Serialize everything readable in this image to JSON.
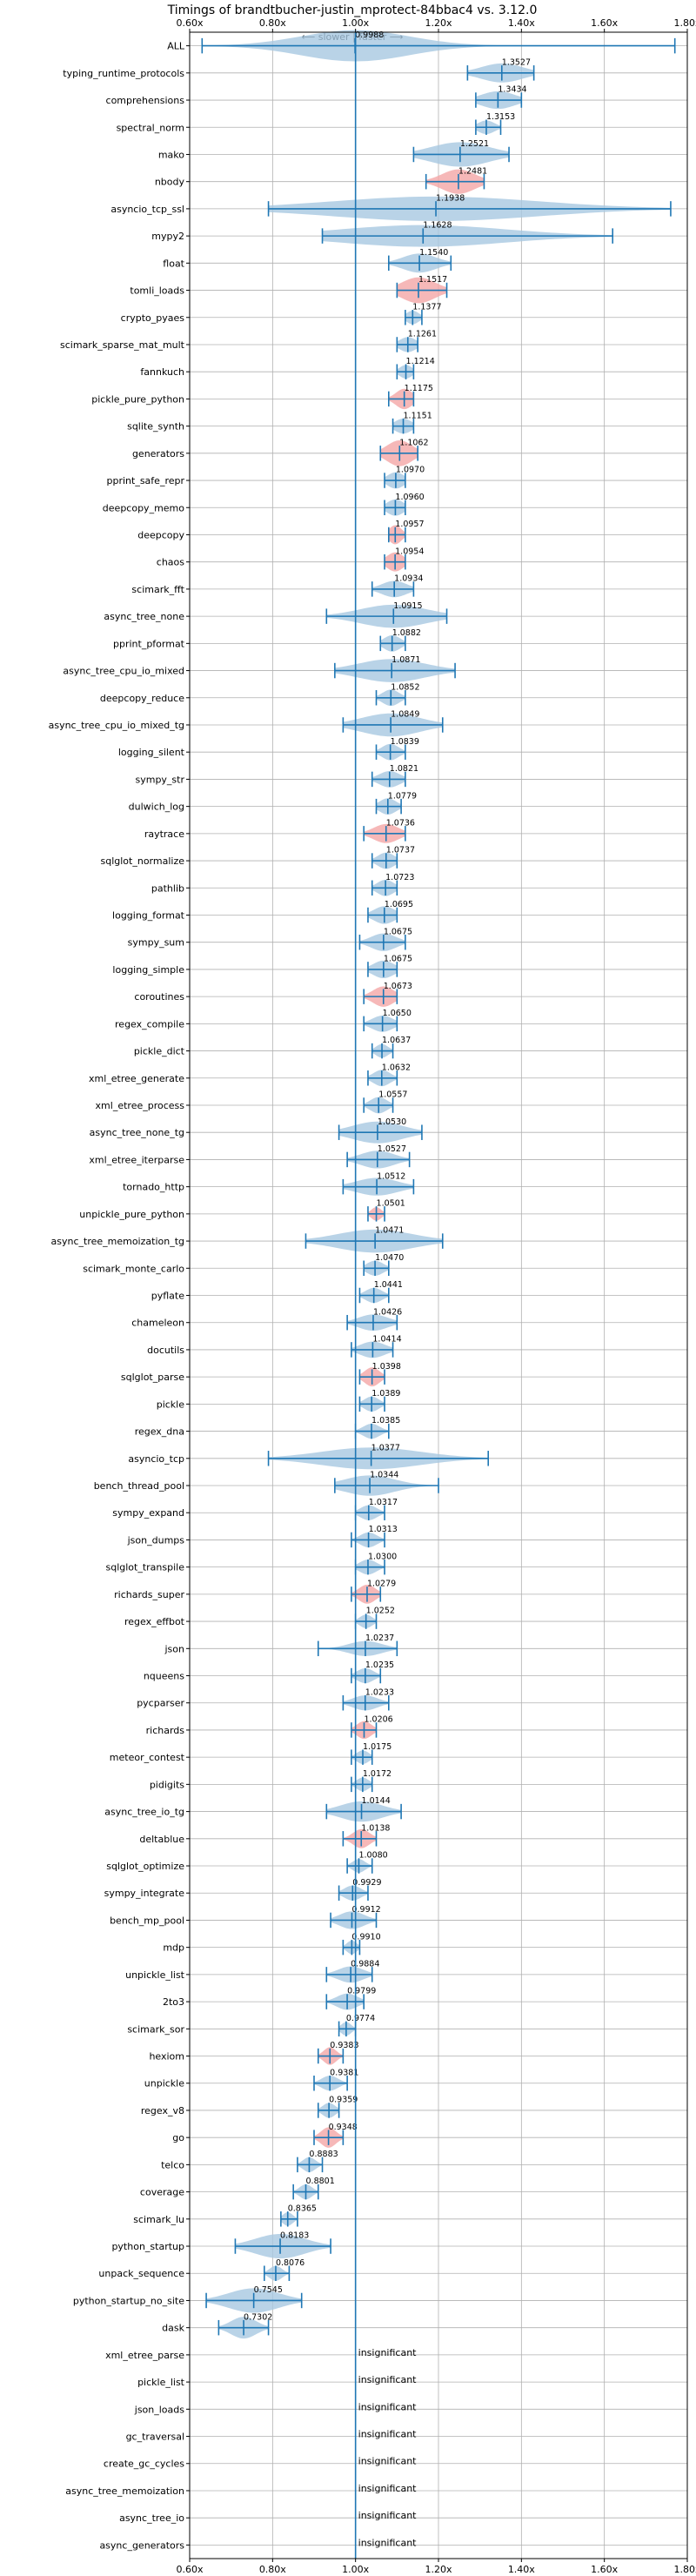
{
  "chart_data": {
    "type": "violin",
    "title": "Timings of brandtbucher-justin_mprotect-84bbac4 vs. 3.12.0",
    "annotation": "⟵ slower | faster ⟶",
    "xlim": [
      0.6,
      1.8
    ],
    "xticks": [
      0.6,
      0.8,
      1.0,
      1.2,
      1.4,
      1.6,
      1.8
    ],
    "xtick_labels": [
      "0.60x",
      "0.80x",
      "1.00x",
      "1.20x",
      "1.40x",
      "1.60x",
      "1.80x"
    ],
    "reference_line": 1.0,
    "grid": true,
    "colors": {
      "faster": "#a7c8e1",
      "slower": "#f4a6a6",
      "errorbar": "#1f77b4",
      "line": "#1f77b4"
    },
    "insignificant_label": "insignificant",
    "benchmarks": [
      {
        "name": "ALL",
        "mean": 0.9988,
        "label": "0.9988",
        "lo": 0.63,
        "hi": 1.77,
        "width": 1.15,
        "spread": 0.13,
        "color": "faster"
      },
      {
        "name": "typing_runtime_protocols",
        "mean": 1.3527,
        "label": "1.3527",
        "lo": 1.27,
        "hi": 1.43,
        "width": 0.7,
        "spread": 0.05,
        "color": "faster"
      },
      {
        "name": "comprehensions",
        "mean": 1.3434,
        "label": "1.3434",
        "lo": 1.29,
        "hi": 1.4,
        "width": 0.65,
        "spread": 0.04,
        "color": "faster"
      },
      {
        "name": "spectral_norm",
        "mean": 1.3153,
        "label": "1.3153",
        "lo": 1.29,
        "hi": 1.35,
        "width": 0.5,
        "spread": 0.02,
        "color": "faster"
      },
      {
        "name": "mako",
        "mean": 1.2521,
        "label": "1.2521",
        "lo": 1.14,
        "hi": 1.37,
        "width": 0.9,
        "spread": 0.07,
        "color": "faster"
      },
      {
        "name": "nbody",
        "mean": 1.2481,
        "label": "1.2481",
        "lo": 1.17,
        "hi": 1.31,
        "width": 0.9,
        "spread": 0.04,
        "color": "slower"
      },
      {
        "name": "asyncio_tcp_ssl",
        "mean": 1.1938,
        "label": "1.1938",
        "lo": 0.79,
        "hi": 1.76,
        "width": 0.9,
        "spread": 0.25,
        "color": "faster"
      },
      {
        "name": "mypy2",
        "mean": 1.1628,
        "label": "1.1628",
        "lo": 0.92,
        "hi": 1.62,
        "width": 0.8,
        "spread": 0.2,
        "color": "faster"
      },
      {
        "name": "float",
        "mean": 1.154,
        "label": "1.1540",
        "lo": 1.08,
        "hi": 1.23,
        "width": 0.7,
        "spread": 0.04,
        "color": "faster"
      },
      {
        "name": "tomli_loads",
        "mean": 1.1517,
        "label": "1.1517",
        "lo": 1.1,
        "hi": 1.22,
        "width": 0.95,
        "spread": 0.04,
        "color": "slower"
      },
      {
        "name": "crypto_pyaes",
        "mean": 1.1377,
        "label": "1.1377",
        "lo": 1.12,
        "hi": 1.16,
        "width": 0.5,
        "spread": 0.015,
        "color": "faster"
      },
      {
        "name": "scimark_sparse_mat_mult",
        "mean": 1.1261,
        "label": "1.1261",
        "lo": 1.1,
        "hi": 1.15,
        "width": 0.55,
        "spread": 0.02,
        "color": "faster"
      },
      {
        "name": "fannkuch",
        "mean": 1.1214,
        "label": "1.1214",
        "lo": 1.1,
        "hi": 1.14,
        "width": 0.5,
        "spread": 0.015,
        "color": "faster"
      },
      {
        "name": "pickle_pure_python",
        "mean": 1.1175,
        "label": "1.1175",
        "lo": 1.08,
        "hi": 1.14,
        "width": 0.75,
        "spread": 0.02,
        "color": "slower"
      },
      {
        "name": "sqlite_synth",
        "mean": 1.1151,
        "label": "1.1151",
        "lo": 1.09,
        "hi": 1.14,
        "width": 0.55,
        "spread": 0.02,
        "color": "faster"
      },
      {
        "name": "generators",
        "mean": 1.1062,
        "label": "1.1062",
        "lo": 1.06,
        "hi": 1.15,
        "width": 0.95,
        "spread": 0.03,
        "color": "slower"
      },
      {
        "name": "pprint_safe_repr",
        "mean": 1.097,
        "label": "1.0970",
        "lo": 1.07,
        "hi": 1.12,
        "width": 0.6,
        "spread": 0.02,
        "color": "faster"
      },
      {
        "name": "deepcopy_memo",
        "mean": 1.096,
        "label": "1.0960",
        "lo": 1.07,
        "hi": 1.12,
        "width": 0.6,
        "spread": 0.02,
        "color": "faster"
      },
      {
        "name": "deepcopy",
        "mean": 1.0957,
        "label": "1.0957",
        "lo": 1.08,
        "hi": 1.12,
        "width": 0.7,
        "spread": 0.015,
        "color": "slower"
      },
      {
        "name": "chaos",
        "mean": 1.0954,
        "label": "1.0954",
        "lo": 1.07,
        "hi": 1.12,
        "width": 0.7,
        "spread": 0.02,
        "color": "slower"
      },
      {
        "name": "scimark_fft",
        "mean": 1.0934,
        "label": "1.0934",
        "lo": 1.04,
        "hi": 1.14,
        "width": 0.6,
        "spread": 0.03,
        "color": "faster"
      },
      {
        "name": "async_tree_none",
        "mean": 1.0915,
        "label": "1.0915",
        "lo": 0.93,
        "hi": 1.22,
        "width": 0.85,
        "spread": 0.08,
        "color": "faster"
      },
      {
        "name": "pprint_pformat",
        "mean": 1.0882,
        "label": "1.0882",
        "lo": 1.06,
        "hi": 1.12,
        "width": 0.6,
        "spread": 0.02,
        "color": "faster"
      },
      {
        "name": "async_tree_cpu_io_mixed",
        "mean": 1.0871,
        "label": "1.0871",
        "lo": 0.95,
        "hi": 1.24,
        "width": 0.85,
        "spread": 0.08,
        "color": "faster"
      },
      {
        "name": "deepcopy_reduce",
        "mean": 1.0852,
        "label": "1.0852",
        "lo": 1.05,
        "hi": 1.12,
        "width": 0.6,
        "spread": 0.02,
        "color": "faster"
      },
      {
        "name": "async_tree_cpu_io_mixed_tg",
        "mean": 1.0849,
        "label": "1.0849",
        "lo": 0.97,
        "hi": 1.21,
        "width": 0.85,
        "spread": 0.07,
        "color": "faster"
      },
      {
        "name": "logging_silent",
        "mean": 1.0839,
        "label": "1.0839",
        "lo": 1.05,
        "hi": 1.12,
        "width": 0.6,
        "spread": 0.02,
        "color": "faster"
      },
      {
        "name": "sympy_str",
        "mean": 1.0821,
        "label": "1.0821",
        "lo": 1.04,
        "hi": 1.12,
        "width": 0.6,
        "spread": 0.025,
        "color": "faster"
      },
      {
        "name": "dulwich_log",
        "mean": 1.0779,
        "label": "1.0779",
        "lo": 1.05,
        "hi": 1.11,
        "width": 0.6,
        "spread": 0.02,
        "color": "faster"
      },
      {
        "name": "raytrace",
        "mean": 1.0736,
        "label": "1.0736",
        "lo": 1.02,
        "hi": 1.12,
        "width": 0.7,
        "spread": 0.03,
        "color": "slower"
      },
      {
        "name": "sqlglot_normalize",
        "mean": 1.0737,
        "label": "1.0737",
        "lo": 1.04,
        "hi": 1.1,
        "width": 0.6,
        "spread": 0.02,
        "color": "faster"
      },
      {
        "name": "pathlib",
        "mean": 1.0723,
        "label": "1.0723",
        "lo": 1.04,
        "hi": 1.1,
        "width": 0.6,
        "spread": 0.02,
        "color": "faster"
      },
      {
        "name": "logging_format",
        "mean": 1.0695,
        "label": "1.0695",
        "lo": 1.03,
        "hi": 1.1,
        "width": 0.65,
        "spread": 0.025,
        "color": "faster"
      },
      {
        "name": "sympy_sum",
        "mean": 1.0675,
        "label": "1.0675",
        "lo": 1.01,
        "hi": 1.12,
        "width": 0.65,
        "spread": 0.03,
        "color": "faster"
      },
      {
        "name": "logging_simple",
        "mean": 1.0675,
        "label": "1.0675",
        "lo": 1.03,
        "hi": 1.1,
        "width": 0.65,
        "spread": 0.025,
        "color": "faster"
      },
      {
        "name": "coroutines",
        "mean": 1.0673,
        "label": "1.0673",
        "lo": 1.02,
        "hi": 1.1,
        "width": 0.75,
        "spread": 0.025,
        "color": "slower"
      },
      {
        "name": "regex_compile",
        "mean": 1.065,
        "label": "1.0650",
        "lo": 1.02,
        "hi": 1.1,
        "width": 0.6,
        "spread": 0.025,
        "color": "faster"
      },
      {
        "name": "pickle_dict",
        "mean": 1.0637,
        "label": "1.0637",
        "lo": 1.04,
        "hi": 1.09,
        "width": 0.5,
        "spread": 0.015,
        "color": "faster"
      },
      {
        "name": "xml_etree_generate",
        "mean": 1.0632,
        "label": "1.0632",
        "lo": 1.03,
        "hi": 1.1,
        "width": 0.6,
        "spread": 0.02,
        "color": "faster"
      },
      {
        "name": "xml_etree_process",
        "mean": 1.0557,
        "label": "1.0557",
        "lo": 1.02,
        "hi": 1.09,
        "width": 0.6,
        "spread": 0.02,
        "color": "faster"
      },
      {
        "name": "async_tree_none_tg",
        "mean": 1.053,
        "label": "1.0530",
        "lo": 0.96,
        "hi": 1.16,
        "width": 0.8,
        "spread": 0.06,
        "color": "faster"
      },
      {
        "name": "xml_etree_iterparse",
        "mean": 1.0527,
        "label": "1.0527",
        "lo": 0.98,
        "hi": 1.13,
        "width": 0.65,
        "spread": 0.04,
        "color": "faster"
      },
      {
        "name": "tornado_http",
        "mean": 1.0512,
        "label": "1.0512",
        "lo": 0.97,
        "hi": 1.14,
        "width": 0.65,
        "spread": 0.05,
        "color": "faster"
      },
      {
        "name": "unpickle_pure_python",
        "mean": 1.0501,
        "label": "1.0501",
        "lo": 1.03,
        "hi": 1.07,
        "width": 0.5,
        "spread": 0.012,
        "color": "slower"
      },
      {
        "name": "async_tree_memoization_tg",
        "mean": 1.0471,
        "label": "1.0471",
        "lo": 0.88,
        "hi": 1.21,
        "width": 0.85,
        "spread": 0.09,
        "color": "faster"
      },
      {
        "name": "scimark_monte_carlo",
        "mean": 1.047,
        "label": "1.0470",
        "lo": 1.02,
        "hi": 1.08,
        "width": 0.55,
        "spread": 0.02,
        "color": "faster"
      },
      {
        "name": "pyflate",
        "mean": 1.0441,
        "label": "1.0441",
        "lo": 1.01,
        "hi": 1.08,
        "width": 0.55,
        "spread": 0.02,
        "color": "faster"
      },
      {
        "name": "chameleon",
        "mean": 1.0426,
        "label": "1.0426",
        "lo": 0.98,
        "hi": 1.1,
        "width": 0.6,
        "spread": 0.035,
        "color": "faster"
      },
      {
        "name": "docutils",
        "mean": 1.0414,
        "label": "1.0414",
        "lo": 0.99,
        "hi": 1.09,
        "width": 0.6,
        "spread": 0.03,
        "color": "faster"
      },
      {
        "name": "sqlglot_parse",
        "mean": 1.0398,
        "label": "1.0398",
        "lo": 1.01,
        "hi": 1.07,
        "width": 0.7,
        "spread": 0.018,
        "color": "slower"
      },
      {
        "name": "pickle",
        "mean": 1.0389,
        "label": "1.0389",
        "lo": 1.01,
        "hi": 1.07,
        "width": 0.55,
        "spread": 0.018,
        "color": "faster"
      },
      {
        "name": "regex_dna",
        "mean": 1.0385,
        "label": "1.0385",
        "lo": 1.0,
        "hi": 1.08,
        "width": 0.55,
        "spread": 0.02,
        "color": "faster"
      },
      {
        "name": "asyncio_tcp",
        "mean": 1.0377,
        "label": "1.0377",
        "lo": 0.79,
        "hi": 1.32,
        "width": 0.8,
        "spread": 0.12,
        "color": "faster"
      },
      {
        "name": "bench_thread_pool",
        "mean": 1.0344,
        "label": "1.0344",
        "lo": 0.95,
        "hi": 1.2,
        "width": 0.75,
        "spread": 0.06,
        "color": "faster"
      },
      {
        "name": "sympy_expand",
        "mean": 1.0317,
        "label": "1.0317",
        "lo": 1.0,
        "hi": 1.07,
        "width": 0.55,
        "spread": 0.02,
        "color": "faster"
      },
      {
        "name": "json_dumps",
        "mean": 1.0313,
        "label": "1.0313",
        "lo": 0.99,
        "hi": 1.07,
        "width": 0.55,
        "spread": 0.02,
        "color": "faster"
      },
      {
        "name": "sqlglot_transpile",
        "mean": 1.03,
        "label": "1.0300",
        "lo": 1.0,
        "hi": 1.07,
        "width": 0.55,
        "spread": 0.02,
        "color": "faster"
      },
      {
        "name": "richards_super",
        "mean": 1.0279,
        "label": "1.0279",
        "lo": 0.99,
        "hi": 1.06,
        "width": 0.7,
        "spread": 0.02,
        "color": "slower"
      },
      {
        "name": "regex_effbot",
        "mean": 1.0252,
        "label": "1.0252",
        "lo": 1.0,
        "hi": 1.05,
        "width": 0.5,
        "spread": 0.015,
        "color": "faster"
      },
      {
        "name": "json",
        "mean": 1.0237,
        "label": "1.0237",
        "lo": 0.91,
        "hi": 1.1,
        "width": 0.55,
        "spread": 0.04,
        "color": "faster"
      },
      {
        "name": "nqueens",
        "mean": 1.0235,
        "label": "1.0235",
        "lo": 0.99,
        "hi": 1.06,
        "width": 0.55,
        "spread": 0.02,
        "color": "faster"
      },
      {
        "name": "pycparser",
        "mean": 1.0233,
        "label": "1.0233",
        "lo": 0.97,
        "hi": 1.08,
        "width": 0.55,
        "spread": 0.03,
        "color": "faster"
      },
      {
        "name": "richards",
        "mean": 1.0206,
        "label": "1.0206",
        "lo": 0.99,
        "hi": 1.05,
        "width": 0.65,
        "spread": 0.018,
        "color": "slower"
      },
      {
        "name": "meteor_contest",
        "mean": 1.0175,
        "label": "1.0175",
        "lo": 0.99,
        "hi": 1.04,
        "width": 0.5,
        "spread": 0.015,
        "color": "faster"
      },
      {
        "name": "pidigits",
        "mean": 1.0172,
        "label": "1.0172",
        "lo": 0.99,
        "hi": 1.04,
        "width": 0.5,
        "spread": 0.015,
        "color": "faster"
      },
      {
        "name": "async_tree_io_tg",
        "mean": 1.0144,
        "label": "1.0144",
        "lo": 0.93,
        "hi": 1.11,
        "width": 0.75,
        "spread": 0.05,
        "color": "faster"
      },
      {
        "name": "deltablue",
        "mean": 1.0138,
        "label": "1.0138",
        "lo": 0.97,
        "hi": 1.05,
        "width": 0.7,
        "spread": 0.02,
        "color": "slower"
      },
      {
        "name": "sqlglot_optimize",
        "mean": 1.008,
        "label": "1.0080",
        "lo": 0.98,
        "hi": 1.04,
        "width": 0.5,
        "spread": 0.015,
        "color": "faster"
      },
      {
        "name": "sympy_integrate",
        "mean": 0.9929,
        "label": "0.9929",
        "lo": 0.96,
        "hi": 1.03,
        "width": 0.55,
        "spread": 0.02,
        "color": "faster"
      },
      {
        "name": "bench_mp_pool",
        "mean": 0.9912,
        "label": "0.9912",
        "lo": 0.94,
        "hi": 1.05,
        "width": 0.65,
        "spread": 0.03,
        "color": "faster"
      },
      {
        "name": "mdp",
        "mean": 0.991,
        "label": "0.9910",
        "lo": 0.97,
        "hi": 1.01,
        "width": 0.5,
        "spread": 0.012,
        "color": "faster"
      },
      {
        "name": "unpickle_list",
        "mean": 0.9884,
        "label": "0.9884",
        "lo": 0.93,
        "hi": 1.04,
        "width": 0.6,
        "spread": 0.03,
        "color": "faster"
      },
      {
        "name": "2to3",
        "mean": 0.9799,
        "label": "0.9799",
        "lo": 0.93,
        "hi": 1.02,
        "width": 0.6,
        "spread": 0.025,
        "color": "faster"
      },
      {
        "name": "scimark_sor",
        "mean": 0.9774,
        "label": "0.9774",
        "lo": 0.96,
        "hi": 1.0,
        "width": 0.5,
        "spread": 0.012,
        "color": "faster"
      },
      {
        "name": "hexiom",
        "mean": 0.9383,
        "label": "0.9383",
        "lo": 0.91,
        "hi": 0.97,
        "width": 0.65,
        "spread": 0.015,
        "color": "slower"
      },
      {
        "name": "unpickle",
        "mean": 0.9381,
        "label": "0.9381",
        "lo": 0.9,
        "hi": 0.98,
        "width": 0.55,
        "spread": 0.02,
        "color": "faster"
      },
      {
        "name": "regex_v8",
        "mean": 0.9359,
        "label": "0.9359",
        "lo": 0.91,
        "hi": 0.96,
        "width": 0.55,
        "spread": 0.015,
        "color": "faster"
      },
      {
        "name": "go",
        "mean": 0.9348,
        "label": "0.9348",
        "lo": 0.9,
        "hi": 0.97,
        "width": 0.75,
        "spread": 0.018,
        "color": "slower"
      },
      {
        "name": "telco",
        "mean": 0.8883,
        "label": "0.8883",
        "lo": 0.86,
        "hi": 0.92,
        "width": 0.55,
        "spread": 0.015,
        "color": "faster"
      },
      {
        "name": "coverage",
        "mean": 0.8801,
        "label": "0.8801",
        "lo": 0.85,
        "hi": 0.91,
        "width": 0.55,
        "spread": 0.015,
        "color": "faster"
      },
      {
        "name": "scimark_lu",
        "mean": 0.8365,
        "label": "0.8365",
        "lo": 0.82,
        "hi": 0.86,
        "width": 0.5,
        "spread": 0.012,
        "color": "faster"
      },
      {
        "name": "python_startup",
        "mean": 0.8183,
        "label": "0.8183",
        "lo": 0.71,
        "hi": 0.94,
        "width": 0.9,
        "spread": 0.06,
        "color": "faster"
      },
      {
        "name": "unpack_sequence",
        "mean": 0.8076,
        "label": "0.8076",
        "lo": 0.78,
        "hi": 0.84,
        "width": 0.55,
        "spread": 0.015,
        "color": "faster"
      },
      {
        "name": "python_startup_no_site",
        "mean": 0.7545,
        "label": "0.7545",
        "lo": 0.64,
        "hi": 0.87,
        "width": 0.9,
        "spread": 0.06,
        "color": "faster"
      },
      {
        "name": "dask",
        "mean": 0.7302,
        "label": "0.7302",
        "lo": 0.67,
        "hi": 0.79,
        "width": 0.8,
        "spread": 0.03,
        "color": "faster"
      },
      {
        "name": "xml_etree_parse",
        "insignificant": true
      },
      {
        "name": "pickle_list",
        "insignificant": true
      },
      {
        "name": "json_loads",
        "insignificant": true
      },
      {
        "name": "gc_traversal",
        "insignificant": true
      },
      {
        "name": "create_gc_cycles",
        "insignificant": true
      },
      {
        "name": "async_tree_memoization",
        "insignificant": true
      },
      {
        "name": "async_tree_io",
        "insignificant": true
      },
      {
        "name": "async_generators",
        "insignificant": true
      }
    ]
  }
}
